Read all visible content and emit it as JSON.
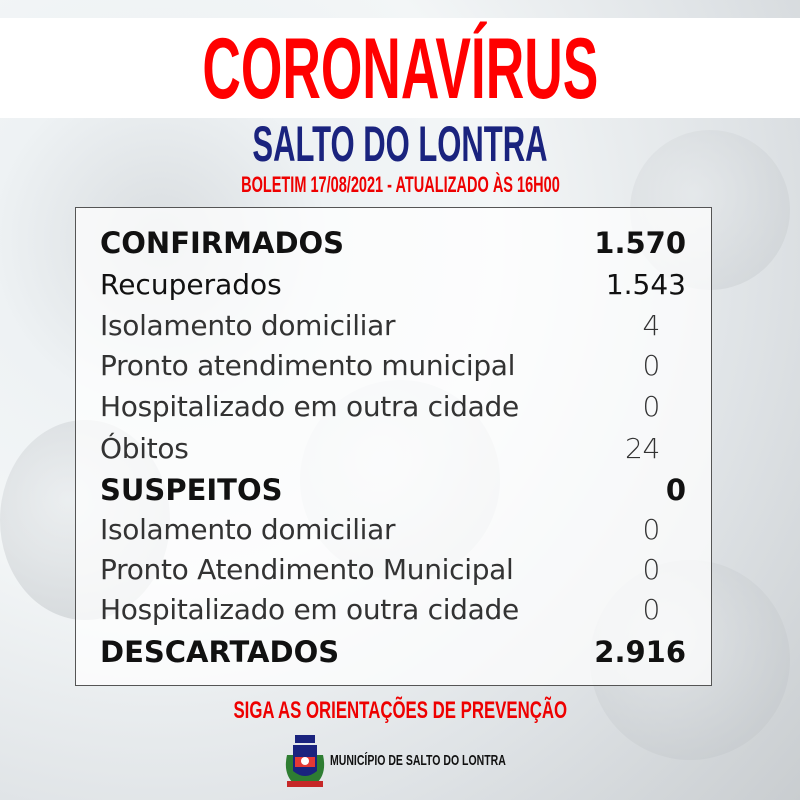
{
  "header": {
    "title": "CORONAVÍRUS",
    "city": "SALTO DO LONTRA",
    "bulletin": "BOLETIM 17/08/2021 - ATUALIZADO ÀS 16H00"
  },
  "rows": [
    {
      "label": "CONFIRMADOS",
      "value": "1.570",
      "style": "bold"
    },
    {
      "label": "Recuperados",
      "value": "1.543",
      "style": "medium"
    },
    {
      "label": "Isolamento domiciliar",
      "value": "4",
      "style": "light"
    },
    {
      "label": "Pronto atendimento municipal",
      "value": "0",
      "style": "light"
    },
    {
      "label": "Hospitalizado em outra cidade",
      "value": "0",
      "style": "light"
    },
    {
      "label": "Óbitos",
      "value": "24",
      "style": "light"
    },
    {
      "label": "SUSPEITOS",
      "value": "0",
      "style": "bold"
    },
    {
      "label": "Isolamento domiciliar",
      "value": "0",
      "style": "light"
    },
    {
      "label": "Pronto Atendimento Municipal",
      "value": "0",
      "style": "light"
    },
    {
      "label": "Hospitalizado em outra cidade",
      "value": "0",
      "style": "light"
    },
    {
      "label": "DESCARTADOS",
      "value": "2.916",
      "style": "bold"
    }
  ],
  "footer": {
    "slogan": "SIGA AS ORIENTAÇÕES DE PREVENÇÃO",
    "municipality": "MUNICÍPIO DE SALTO DO LONTRA"
  },
  "colors": {
    "title": "#ff0000",
    "city": "#1a237e",
    "bulletin": "#ee0000"
  }
}
